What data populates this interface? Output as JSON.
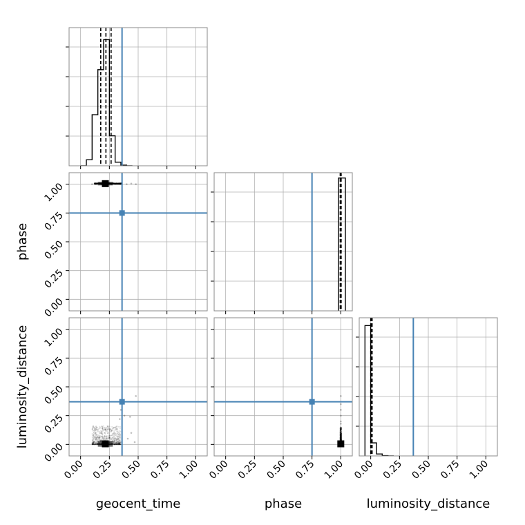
{
  "chart_data": {
    "type": "corner",
    "parameters": [
      "geocent_time",
      "phase",
      "luminosity_distance"
    ],
    "axis_labels": {
      "geocent_time": "geocent_time",
      "phase": "phase",
      "luminosity_distance": "luminosity_distance"
    },
    "range": [
      -0.1,
      1.1
    ],
    "ticks": [
      0,
      0.25,
      0.5,
      0.75,
      1
    ],
    "tick_labels": [
      "0.00",
      "0.25",
      "0.50",
      "0.75",
      "1.00"
    ],
    "grid": true,
    "truths": {
      "geocent_time": 0.36,
      "phase": 0.75,
      "luminosity_distance": 0.37
    },
    "truth_color": "#4682b4",
    "hist_color": "#000000",
    "histograms": {
      "geocent_time": {
        "bin_edges": [
          0.0,
          0.05,
          0.1,
          0.15,
          0.2,
          0.25,
          0.3,
          0.35,
          0.4,
          0.45
        ],
        "counts": [
          0.0,
          0.02,
          0.17,
          0.32,
          0.42,
          0.1,
          0.012,
          0.002,
          0.0
        ],
        "quantiles": [
          0.175,
          0.22,
          0.265
        ],
        "ymax": 0.46
      },
      "phase": {
        "bin_edges": [
          0.98,
          1.04
        ],
        "counts": [
          1.0
        ],
        "quantiles": [
          0.995,
          1.0,
          1.003
        ],
        "ymax": 1.04
      },
      "luminosity_distance": {
        "bin_edges": [
          -0.05,
          0.0,
          0.05,
          0.1,
          0.15,
          0.2
        ],
        "counts": [
          1.0,
          0.1,
          0.015,
          0.002,
          0.0
        ],
        "quantiles": [
          0.0,
          0.005,
          0.012
        ],
        "ymax": 1.06
      }
    },
    "samples_2d": [
      {
        "x": "geocent_time",
        "y": "phase",
        "core": {
          "x": [
            0.15,
            0.28
          ],
          "y": [
            0.99,
            1.02
          ]
        },
        "spread_x": [
          0.12,
          0.36
        ],
        "outliers": [
          [
            0.4,
            1.0
          ],
          [
            0.44,
            1.005
          ],
          [
            0.48,
            1.0
          ],
          [
            0.1,
            1.0
          ]
        ]
      },
      {
        "x": "geocent_time",
        "y": "luminosity_distance",
        "core": {
          "x": [
            0.15,
            0.28
          ],
          "y": [
            -0.02,
            0.03
          ]
        },
        "spread_x": [
          0.1,
          0.35
        ],
        "spread_y": [
          0.0,
          0.16
        ],
        "outliers": [
          [
            0.48,
            0.42
          ],
          [
            0.43,
            0.24
          ],
          [
            0.38,
            0.25
          ],
          [
            0.34,
            0.22
          ],
          [
            0.44,
            0.1
          ],
          [
            0.47,
            0.02
          ],
          [
            0.41,
            0.05
          ],
          [
            0.35,
            0.3
          ]
        ]
      },
      {
        "x": "phase",
        "y": "luminosity_distance",
        "core": {
          "x": [
            0.99,
            1.01
          ],
          "y": [
            -0.02,
            0.03
          ]
        },
        "spread_x": [
          0.995,
          1.005
        ],
        "spread_y": [
          0.0,
          0.15
        ],
        "outliers": [
          [
            1.0,
            0.42
          ],
          [
            1.0,
            0.35
          ],
          [
            1.0,
            0.3
          ],
          [
            1.0,
            0.25
          ],
          [
            1.0,
            0.2
          ],
          [
            1.0,
            0.18
          ]
        ]
      }
    ]
  }
}
